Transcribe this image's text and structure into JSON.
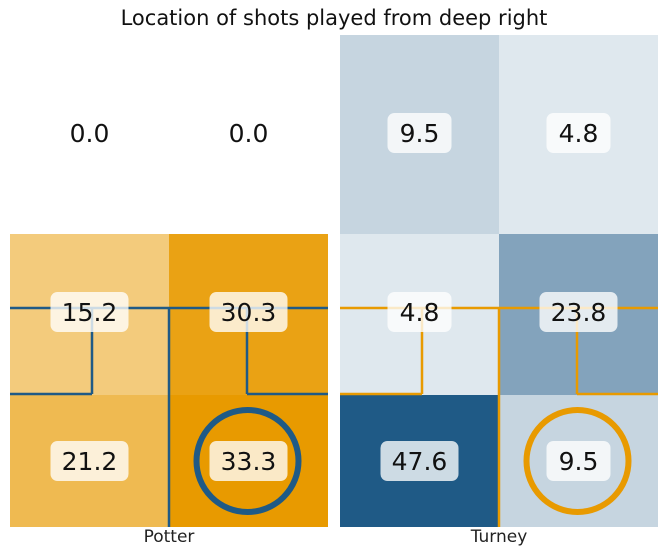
{
  "chart_data": {
    "type": "heatmap",
    "title": "Location of shots played from deep right",
    "xlabel": "",
    "ylabel": "",
    "grid": false,
    "panels": [
      {
        "player": "Potter",
        "colors": {
          "low": "#ffffff",
          "high": "#e89a00",
          "line": "#1f5a86"
        },
        "cells": [
          {
            "row": 0,
            "col": 0,
            "value": 0.0
          },
          {
            "row": 0,
            "col": 1,
            "value": 0.0
          },
          {
            "row": 1,
            "col": 0,
            "value": 15.2
          },
          {
            "row": 1,
            "col": 1,
            "value": 30.3
          },
          {
            "row": 2,
            "col": 0,
            "value": 21.2
          },
          {
            "row": 2,
            "col": 1,
            "value": 33.3
          }
        ],
        "highlight": {
          "row": 2,
          "col": 1
        }
      },
      {
        "player": "Turney",
        "colors": {
          "low": "#ffffff",
          "high": "#1f5a86",
          "line": "#e89a00"
        },
        "cells": [
          {
            "row": 0,
            "col": 0,
            "value": 9.5
          },
          {
            "row": 0,
            "col": 1,
            "value": 4.8
          },
          {
            "row": 1,
            "col": 0,
            "value": 4.8
          },
          {
            "row": 1,
            "col": 1,
            "value": 23.8
          },
          {
            "row": 2,
            "col": 0,
            "value": 47.6
          },
          {
            "row": 2,
            "col": 1,
            "value": 9.5
          }
        ],
        "highlight": {
          "row": 2,
          "col": 1
        }
      }
    ]
  }
}
